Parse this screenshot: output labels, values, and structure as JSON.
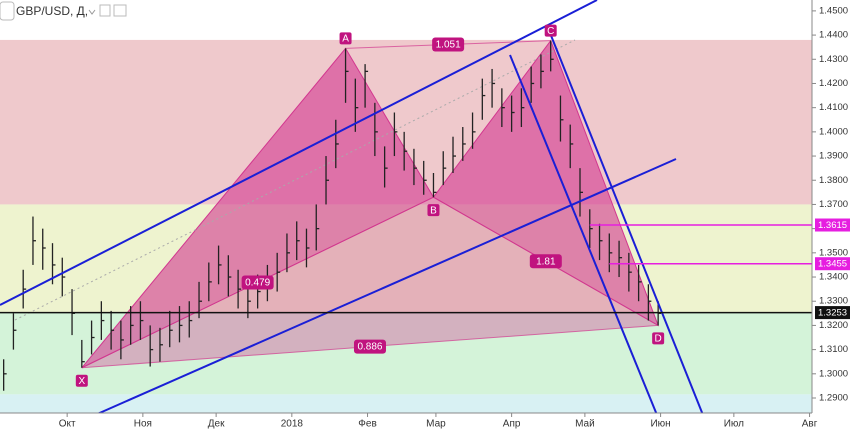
{
  "chart_data": {
    "type": "ohlc",
    "title": "GBP/USD, Д,",
    "xlim": [
      -27.5,
      305
    ],
    "ylim": [
      1.2838,
      1.4545
    ],
    "xticks": [
      {
        "value": 0,
        "label": "Окт"
      },
      {
        "value": 31,
        "label": "Ноя"
      },
      {
        "value": 61,
        "label": "Дек"
      },
      {
        "value": 92,
        "label": "2018"
      },
      {
        "value": 123,
        "label": "Фев"
      },
      {
        "value": 151,
        "label": "Мар"
      },
      {
        "value": 182,
        "label": "Апр"
      },
      {
        "value": 212,
        "label": "Май"
      },
      {
        "value": 243,
        "label": "Июн"
      },
      {
        "value": 273,
        "label": "Июл"
      },
      {
        "value": 304,
        "label": "Авг"
      }
    ],
    "yticks": [
      {
        "value": 1.29,
        "label": "1.2900"
      },
      {
        "value": 1.3,
        "label": "1.3000"
      },
      {
        "value": 1.31,
        "label": "1.3100"
      },
      {
        "value": 1.32,
        "label": "1.3200"
      },
      {
        "value": 1.33,
        "label": "1.3300"
      },
      {
        "value": 1.34,
        "label": "1.3400"
      },
      {
        "value": 1.35,
        "label": "1.3500"
      },
      {
        "value": 1.36,
        "label": "1.3600"
      },
      {
        "value": 1.37,
        "label": "1.3700"
      },
      {
        "value": 1.38,
        "label": "1.3800"
      },
      {
        "value": 1.39,
        "label": "1.3900"
      },
      {
        "value": 1.4,
        "label": "1.4000"
      },
      {
        "value": 1.41,
        "label": "1.4100"
      },
      {
        "value": 1.42,
        "label": "1.4200"
      },
      {
        "value": 1.43,
        "label": "1.4300"
      },
      {
        "value": 1.44,
        "label": "1.4400"
      },
      {
        "value": 1.45,
        "label": "1.4500"
      }
    ],
    "color": "#222222",
    "x": [
      -26,
      -22,
      -18,
      -14,
      -10,
      -6,
      -2,
      2,
      6,
      10,
      14,
      18,
      22,
      26,
      30,
      34,
      38,
      42,
      46,
      50,
      54,
      58,
      62,
      66,
      70,
      74,
      78,
      82,
      86,
      90,
      94,
      98,
      102,
      106,
      110,
      114,
      118,
      122,
      126,
      130,
      134,
      138,
      142,
      146,
      150,
      154,
      158,
      162,
      166,
      170,
      174,
      178,
      182,
      186,
      190,
      194,
      198,
      202,
      206,
      210,
      214,
      218,
      222,
      226,
      230,
      234,
      238,
      242
    ],
    "high": [
      1.306,
      1.325,
      1.343,
      1.365,
      1.36,
      1.354,
      1.348,
      1.335,
      1.314,
      1.322,
      1.33,
      1.326,
      1.322,
      1.328,
      1.33,
      1.32,
      1.319,
      1.326,
      1.328,
      1.33,
      1.338,
      1.346,
      1.353,
      1.349,
      1.343,
      1.338,
      1.341,
      1.345,
      1.35,
      1.358,
      1.363,
      1.36,
      1.37,
      1.39,
      1.405,
      1.4345,
      1.422,
      1.428,
      1.412,
      1.394,
      1.408,
      1.4,
      1.393,
      1.388,
      1.383,
      1.392,
      1.398,
      1.402,
      1.408,
      1.422,
      1.426,
      1.418,
      1.415,
      1.418,
      1.427,
      1.432,
      1.4377,
      1.415,
      1.403,
      1.385,
      1.368,
      1.362,
      1.358,
      1.355,
      1.35,
      1.345,
      1.337,
      1.33
    ],
    "low": [
      1.293,
      1.31,
      1.327,
      1.345,
      1.343,
      1.337,
      1.332,
      1.316,
      1.3025,
      1.308,
      1.314,
      1.31,
      1.306,
      1.312,
      1.314,
      1.303,
      1.305,
      1.311,
      1.313,
      1.315,
      1.323,
      1.33,
      1.337,
      1.332,
      1.327,
      1.323,
      1.327,
      1.33,
      1.334,
      1.342,
      1.347,
      1.344,
      1.351,
      1.37,
      1.385,
      1.412,
      1.4,
      1.41,
      1.39,
      1.377,
      1.39,
      1.384,
      1.378,
      1.374,
      1.373,
      1.378,
      1.383,
      1.388,
      1.393,
      1.405,
      1.41,
      1.402,
      1.4,
      1.402,
      1.412,
      1.418,
      1.425,
      1.396,
      1.385,
      1.365,
      1.352,
      1.347,
      1.342,
      1.34,
      1.334,
      1.33,
      1.322,
      1.32
    ],
    "close": [
      1.3,
      1.318,
      1.335,
      1.355,
      1.352,
      1.345,
      1.34,
      1.325,
      1.305,
      1.315,
      1.322,
      1.318,
      1.314,
      1.32,
      1.322,
      1.31,
      1.312,
      1.318,
      1.32,
      1.322,
      1.33,
      1.338,
      1.345,
      1.34,
      1.335,
      1.33,
      1.334,
      1.337,
      1.342,
      1.35,
      1.355,
      1.352,
      1.36,
      1.38,
      1.395,
      1.425,
      1.41,
      1.425,
      1.4,
      1.385,
      1.4,
      1.392,
      1.385,
      1.38,
      1.375,
      1.385,
      1.39,
      1.395,
      1.4,
      1.415,
      1.42,
      1.41,
      1.408,
      1.41,
      1.42,
      1.425,
      1.43,
      1.405,
      1.395,
      1.375,
      1.36,
      1.355,
      1.35,
      1.348,
      1.342,
      1.338,
      1.33,
      1.325
    ],
    "zones": [
      {
        "from": 1.37,
        "to": 1.438,
        "color": "#efc9cc"
      },
      {
        "from": 1.3253,
        "to": 1.37,
        "color": "#eef3cf"
      },
      {
        "from": 1.2915,
        "to": 1.3253,
        "color": "#d4f3d9"
      },
      {
        "from": 1.2838,
        "to": 1.2915,
        "color": "#d8f1f3"
      }
    ],
    "pattern": {
      "color": "#d2378f",
      "points": [
        {
          "label": "X",
          "x": 6,
          "y": 1.3025
        },
        {
          "label": "A",
          "x": 114,
          "y": 1.4345
        },
        {
          "label": "B",
          "x": 150,
          "y": 1.373
        },
        {
          "label": "C",
          "x": 198,
          "y": 1.4377
        },
        {
          "label": "D",
          "x": 242,
          "y": 1.32
        }
      ],
      "ratios": [
        1.051,
        0.479,
        1.81,
        0.886
      ]
    },
    "levels": [
      {
        "value": 1.3615,
        "label": "1.3615",
        "x_start": 214,
        "color": "#e61ee0"
      },
      {
        "value": 1.3455,
        "label": "1.3455",
        "x_start": 222,
        "color": "#e61ee0"
      },
      {
        "value": 1.3253,
        "label": "1.3253",
        "x_start": -27.5,
        "color": "#111111"
      }
    ]
  }
}
